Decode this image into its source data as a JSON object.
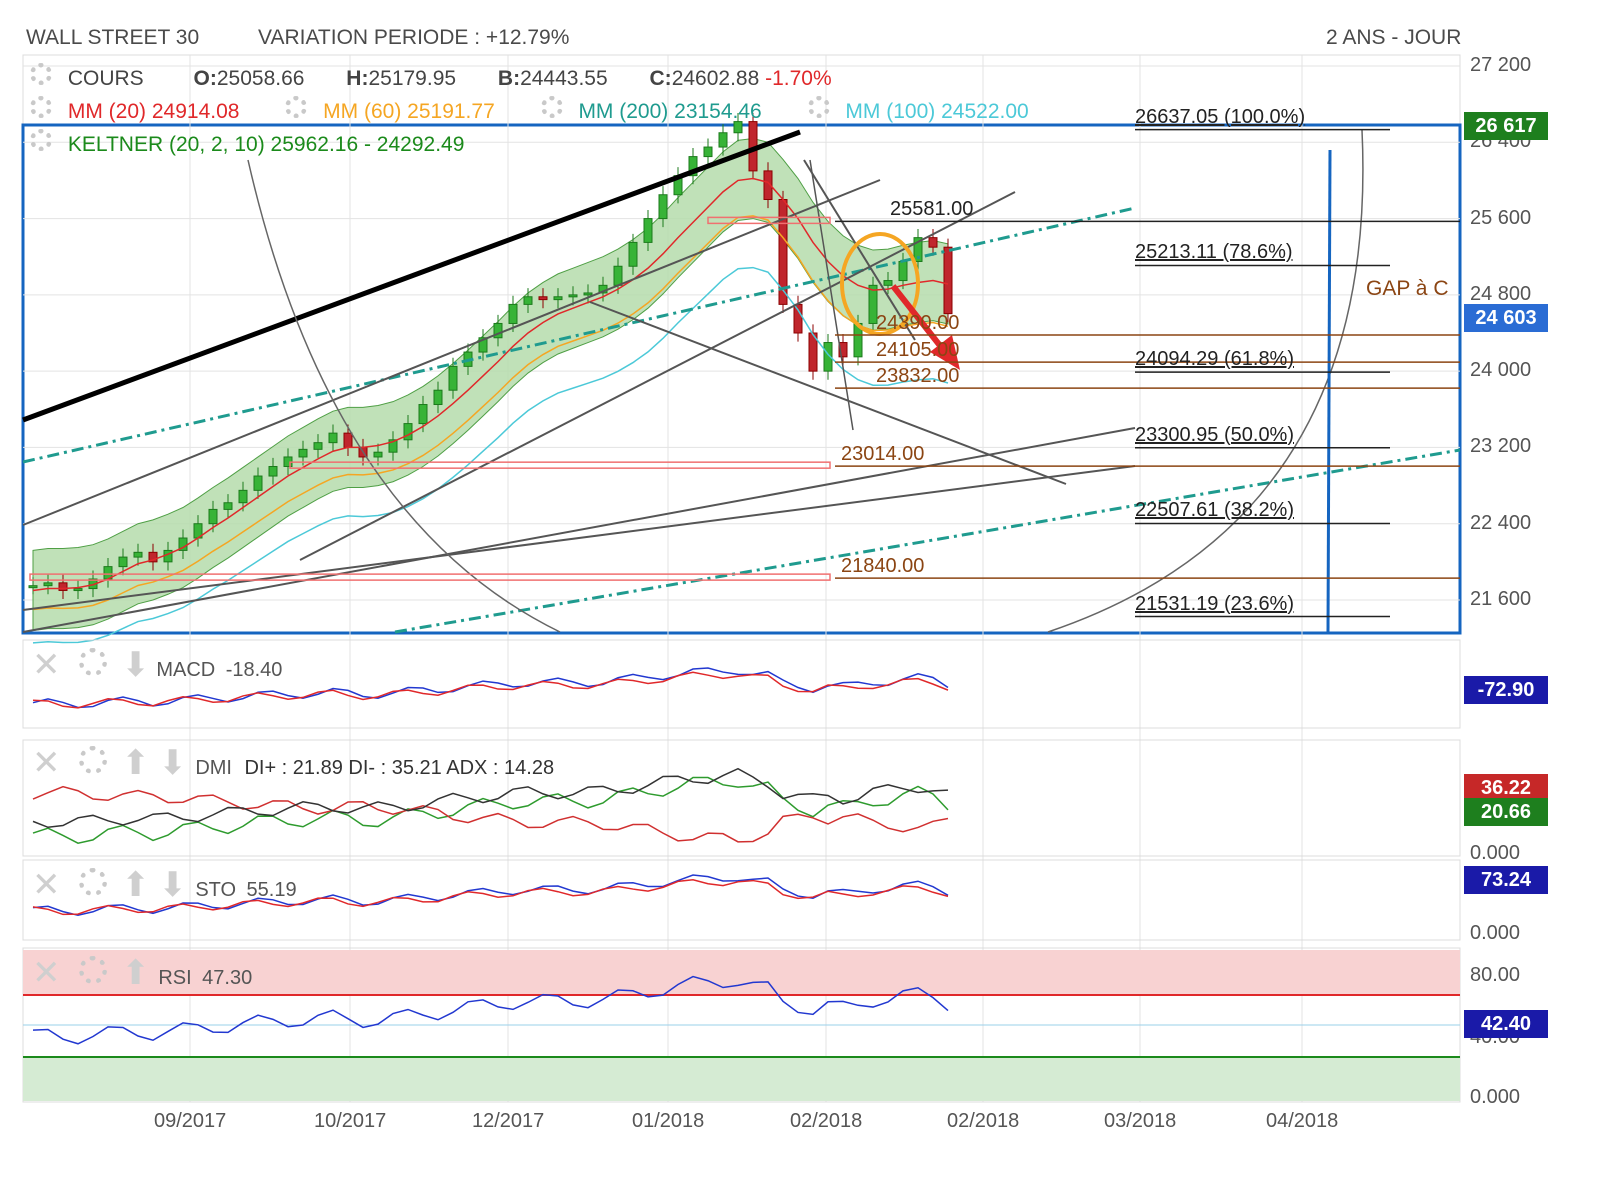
{
  "header": {
    "instrument": "WALL STREET 30",
    "variation": "VARIATION PERIODE : +12.79%",
    "period": "2 ANS - JOUR"
  },
  "legend": {
    "cours_label": "COURS",
    "o_label": "O:",
    "o_value": "25058.66",
    "h_label": "H:",
    "h_value": "25179.95",
    "b_label": "B:",
    "b_value": "24443.55",
    "c_label": "C:",
    "c_value": "24602.88",
    "c_change": "-1.70%",
    "mm20": "MM (20)",
    "mm20_value": "24914.08",
    "mm60": "MM (60)",
    "mm60_value": "25191.77",
    "mm200": "MM (200)",
    "mm200_value": "23154.46",
    "mm100": "MM (100)",
    "mm100_value": "24522.00",
    "keltner": "KELTNER (20, 2, 10)",
    "keltner_value": "25962.16 - 24292.49"
  },
  "colors": {
    "mm20": "#e0282a",
    "mm60": "#f5a623",
    "mm200": "#1f9b8f",
    "mm100": "#4cc9d8",
    "keltner": "#1b8a1b",
    "band_fill": "#a9d6a0",
    "price_badge": "#2a6cd4",
    "high_badge": "#1e7f1e",
    "neg": "#e0282a",
    "fib": "#333333",
    "level": "#8b4513",
    "accent_blue": "#1565c0",
    "macd_badge": "#1a1aa8"
  },
  "axis": {
    "y_ticks": [
      "27 200",
      "26 400",
      "25 600",
      "24 800",
      "24 000",
      "23 200",
      "22 400",
      "21 600"
    ],
    "x_ticks": [
      "09/2017",
      "10/2017",
      "12/2017",
      "01/2018",
      "02/2018",
      "02/2018",
      "03/2018",
      "04/2018"
    ]
  },
  "badges": {
    "high": "26 617",
    "last": "24 603",
    "macd": "-72.90",
    "di_minus": "36.22",
    "di_plus": "20.66",
    "dmi_zero": "0.000",
    "sto": "73.24",
    "sto_zero": "0.000",
    "rsi80": "80.00",
    "rsi": "42.40",
    "rsi40": "40.00",
    "rsi_zero": "0.000"
  },
  "fibonacci": [
    {
      "label": "26637.05  (100.0%)",
      "value": 26637.05
    },
    {
      "label": "25213.11  (78.6%)",
      "value": 25213.11
    },
    {
      "label": "24094.29  (61.8%)",
      "value": 24094.29
    },
    {
      "label": "23300.95  (50.0%)",
      "value": 23300.95
    },
    {
      "label": "22507.61  (38.2%)",
      "value": 22507.61
    },
    {
      "label": "21531.19  (23.6%)",
      "value": 21531.19
    }
  ],
  "levels": [
    {
      "label": "25581.00",
      "value": 25581
    },
    {
      "label": "24390.00",
      "value": 24390
    },
    {
      "label": "24105.00",
      "value": 24105
    },
    {
      "label": "23832.00",
      "value": 23832
    },
    {
      "label": "23014.00",
      "value": 23014
    },
    {
      "label": "21840.00",
      "value": 21840
    }
  ],
  "annotation": {
    "gap": "GAP à C"
  },
  "indicators": {
    "macd": {
      "label": "MACD",
      "value": "-18.40"
    },
    "dmi": {
      "label": "DMI",
      "values": "DI+ : 21.89 DI- : 35.21 ADX : 14.28"
    },
    "sto": {
      "label": "STO",
      "value": "55.19"
    },
    "rsi": {
      "label": "RSI",
      "value": "47.30"
    }
  },
  "chart_data": {
    "type": "line",
    "title": "WALL STREET 30",
    "ylim": [
      21250,
      27300
    ],
    "y_ticks": [
      27200,
      26400,
      25600,
      24800,
      24000,
      23200,
      22400,
      21600
    ],
    "series": [
      {
        "name": "COURS",
        "values": [
          21750,
          21780,
          21700,
          21720,
          21820,
          21950,
          22050,
          22100,
          22000,
          22120,
          22250,
          22400,
          22550,
          22620,
          22750,
          22900,
          23000,
          23100,
          23180,
          23250,
          23350,
          23200,
          23100,
          23150,
          23280,
          23450,
          23650,
          23800,
          24050,
          24200,
          24350,
          24500,
          24700,
          24780,
          24750,
          24780,
          24800,
          24820,
          24900,
          25100,
          25350,
          25600,
          25850,
          26050,
          26250,
          26350,
          26500,
          26617,
          26100,
          25800,
          24700,
          24400,
          24000,
          24300,
          24150,
          24500,
          24900,
          24950,
          25150,
          25400,
          25300,
          24603
        ]
      },
      {
        "name": "MM (20)",
        "values": [
          21700,
          21720,
          21720,
          21730,
          21760,
          21820,
          21900,
          21980,
          22020,
          22080,
          22150,
          22250,
          22360,
          22460,
          22570,
          22680,
          22790,
          22900,
          22990,
          23080,
          23160,
          23200,
          23200,
          23220,
          23260,
          23330,
          23420,
          23530,
          23660,
          23800,
          23950,
          24100,
          24260,
          24400,
          24510,
          24600,
          24660,
          24720,
          24780,
          24860,
          24960,
          25080,
          25230,
          25400,
          25560,
          25720,
          25880,
          26000,
          26020,
          25980,
          25800,
          25600,
          25350,
          25150,
          25000,
          24900,
          24850,
          24860,
          24900,
          24930,
          24950,
          24914
        ]
      }
    ]
  }
}
